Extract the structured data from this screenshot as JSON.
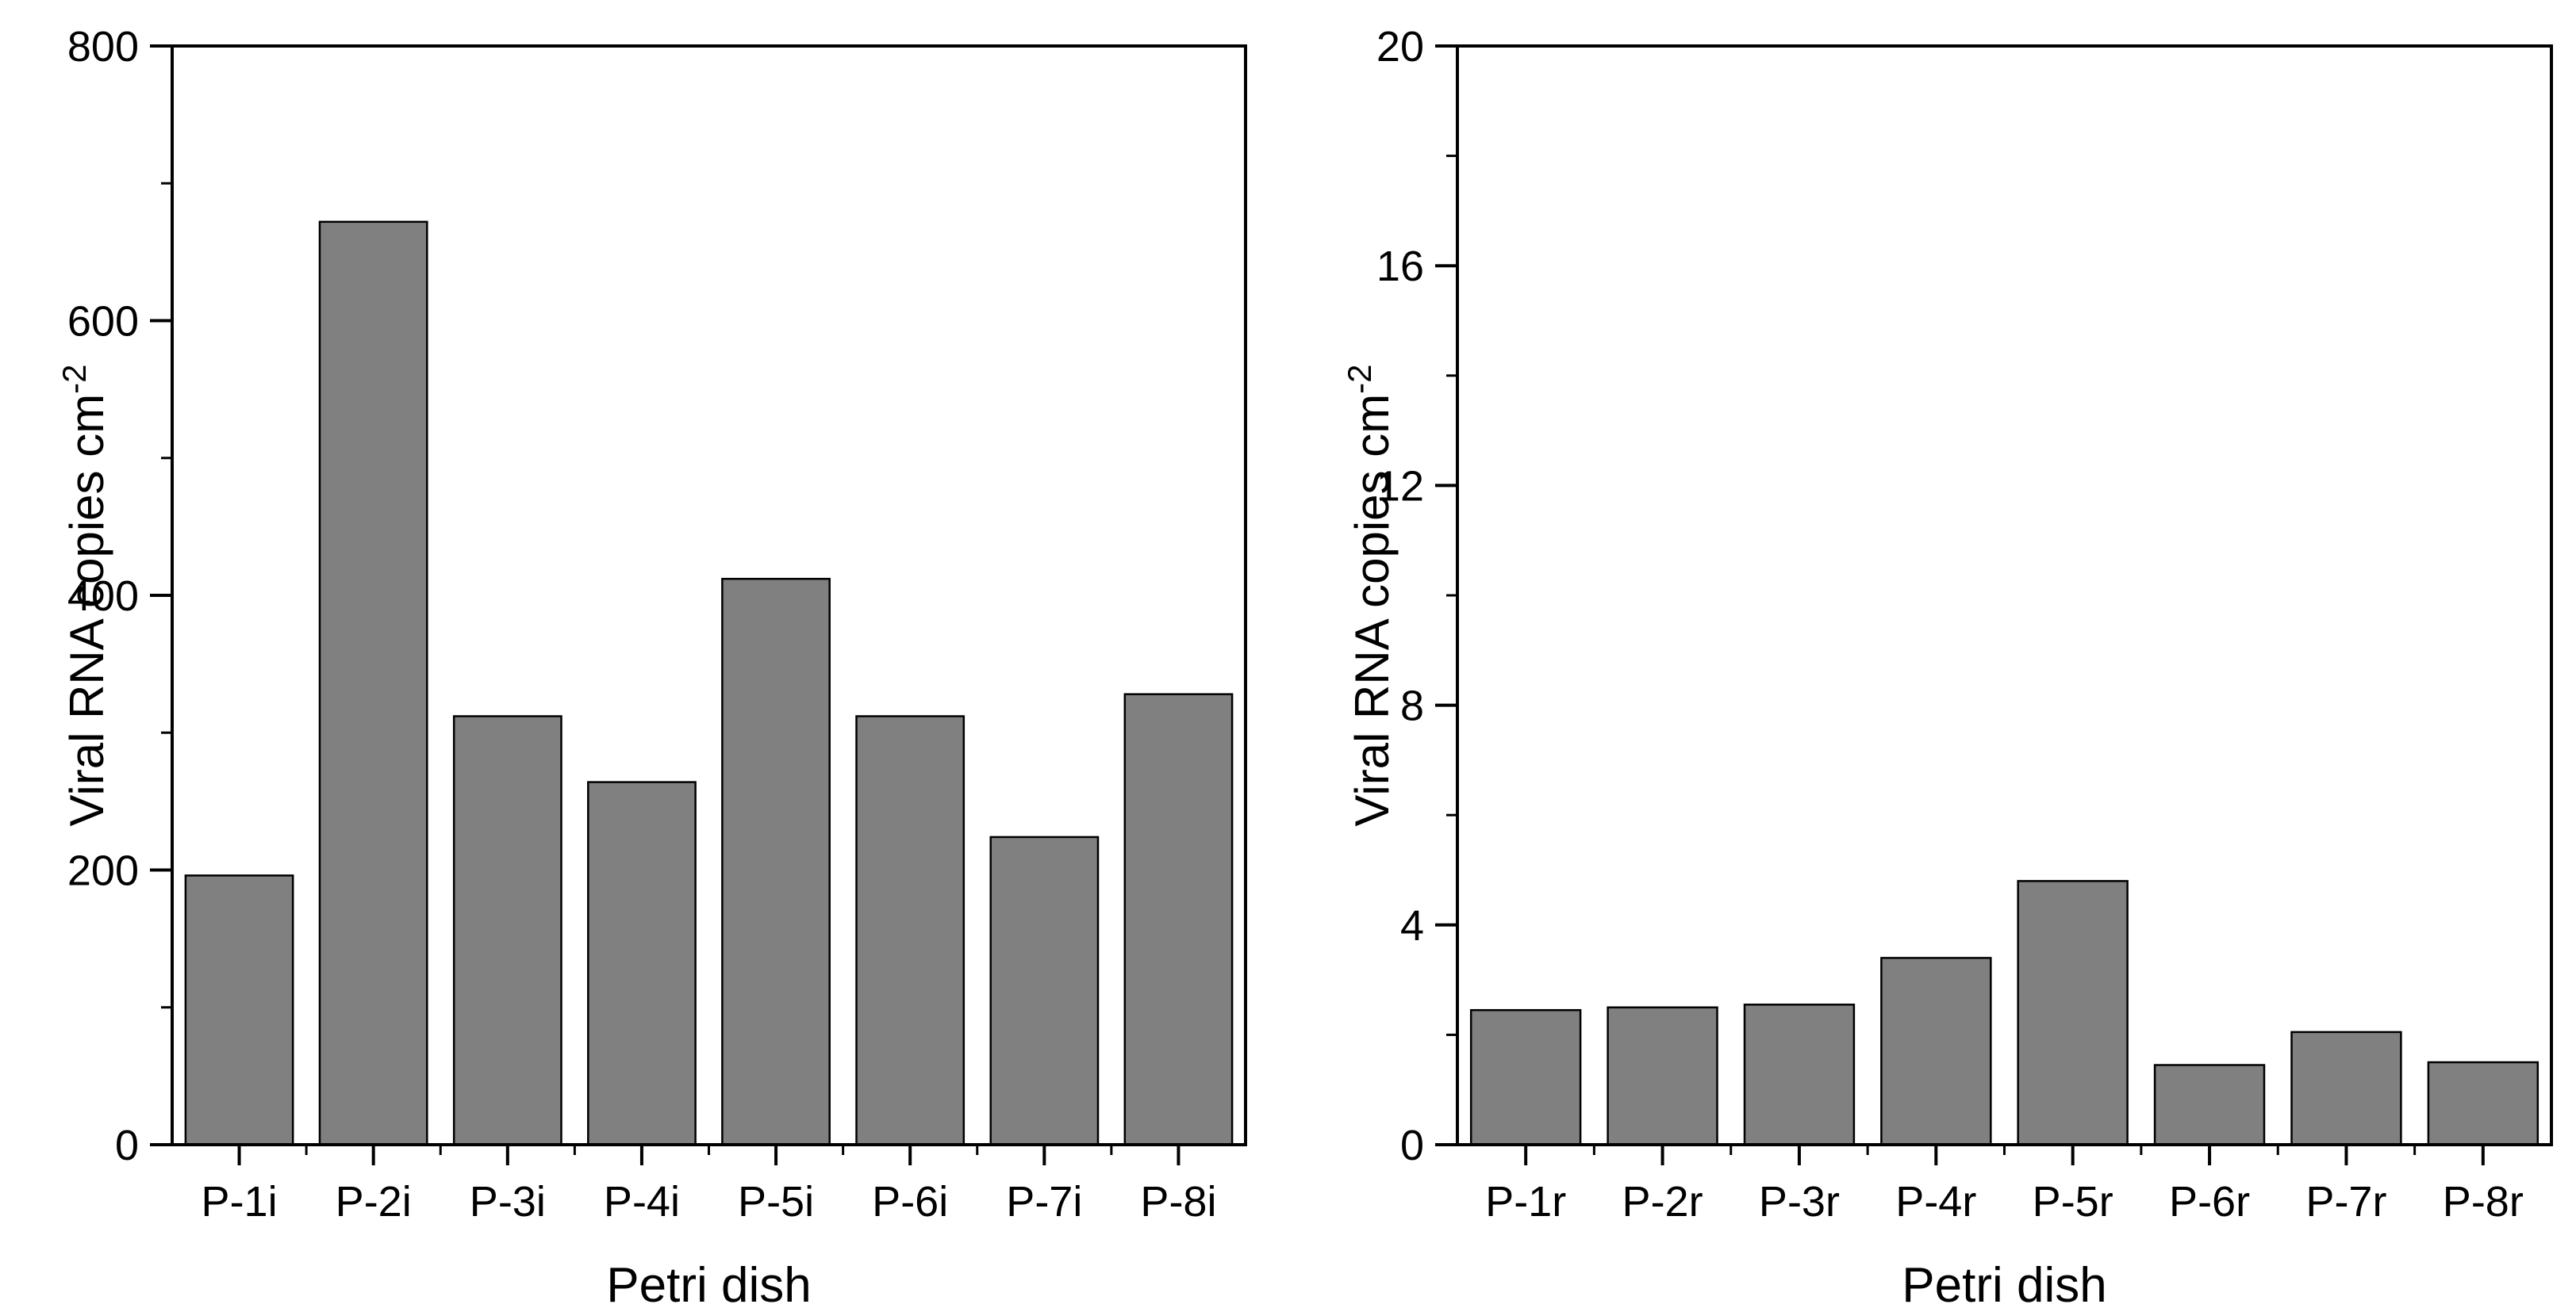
{
  "figure": {
    "background": "#ffffff",
    "text_color": "#000000",
    "axis_color": "#000000"
  },
  "chart_data": [
    {
      "type": "bar",
      "panel": "left",
      "title": "",
      "xlabel": "Petri dish",
      "ylabel": "Viral RNA copies cm⁻²",
      "ylabel_base": "Viral RNA copies cm",
      "ylabel_superscript": "-2",
      "categories": [
        "P-1i",
        "P-2i",
        "P-3i",
        "P-4i",
        "P-5i",
        "P-6i",
        "P-7i",
        "P-8i"
      ],
      "values": [
        196,
        672,
        312,
        264,
        412,
        312,
        224,
        328
      ],
      "ylim": [
        0,
        800
      ],
      "ytick_major_step": 200,
      "ytick_minor_step": 100,
      "ytick_labels": [
        "0",
        "200",
        "400",
        "600",
        "800"
      ],
      "grid": false,
      "legend": false,
      "frame_box": true,
      "ticks_direction": "out",
      "bar_fill": "#808080",
      "bar_stroke": "#000000"
    },
    {
      "type": "bar",
      "panel": "right",
      "title": "",
      "xlabel": "Petri dish",
      "ylabel": "Viral RNA copies cm⁻²",
      "ylabel_base": "Viral RNA copies cm",
      "ylabel_superscript": "-2",
      "categories": [
        "P-1r",
        "P-2r",
        "P-3r",
        "P-4r",
        "P-5r",
        "P-6r",
        "P-7r",
        "P-8r"
      ],
      "values": [
        2.45,
        2.5,
        2.55,
        3.4,
        4.8,
        1.45,
        2.05,
        1.5
      ],
      "ylim": [
        0,
        20
      ],
      "ytick_major_step": 4,
      "ytick_minor_step": 2,
      "ytick_labels": [
        "0",
        "4",
        "8",
        "12",
        "16",
        "20"
      ],
      "grid": false,
      "legend": false,
      "frame_box": true,
      "ticks_direction": "out",
      "bar_fill": "#808080",
      "bar_stroke": "#000000"
    }
  ]
}
